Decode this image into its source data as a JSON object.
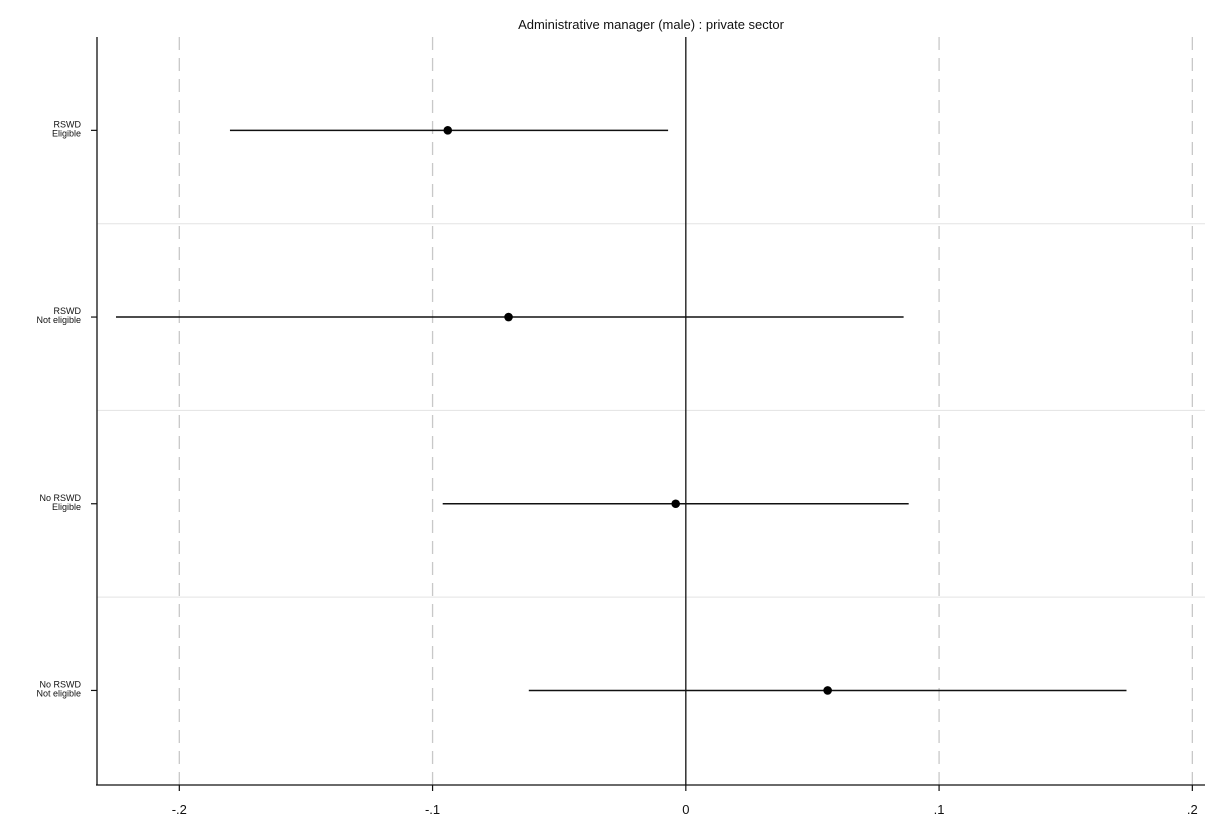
{
  "chart_data": {
    "type": "scatter",
    "subtype": "coefficient-plot-with-confidence-intervals",
    "title": "Administrative manager (male) : private sector",
    "xlabel": "",
    "ylabel": "",
    "xlim": [
      -0.2325,
      0.205
    ],
    "x_ticks": [
      -0.2,
      -0.1,
      0,
      0.1,
      0.2
    ],
    "x_tick_labels": [
      "-.2",
      "-.1",
      "0",
      ".1",
      ".2"
    ],
    "reference_line_x": 0,
    "grid": "dashed vertical lines at x ticks",
    "categories": [
      {
        "lines": [
          "RSWD",
          "Eligible"
        ],
        "estimate": -0.094,
        "ci_low": -0.18,
        "ci_high": -0.007
      },
      {
        "lines": [
          "RSWD",
          "Not eligible"
        ],
        "estimate": -0.07,
        "ci_low": -0.225,
        "ci_high": 0.086
      },
      {
        "lines": [
          "No RSWD",
          "Eligible"
        ],
        "estimate": -0.004,
        "ci_low": -0.096,
        "ci_high": 0.088
      },
      {
        "lines": [
          "No RSWD",
          "Not eligible"
        ],
        "estimate": 0.056,
        "ci_low": -0.062,
        "ci_high": 0.174
      }
    ]
  }
}
